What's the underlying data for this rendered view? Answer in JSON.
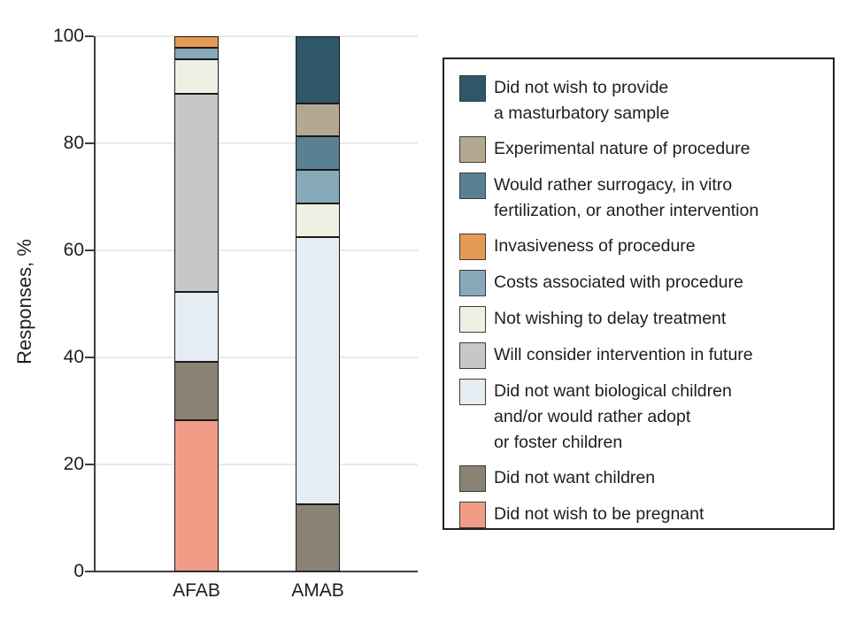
{
  "chart_data": {
    "type": "bar",
    "subtype": "stacked-percent",
    "ylabel": "Responses, %",
    "ylim": [
      0,
      100
    ],
    "yticks": [
      0,
      20,
      40,
      60,
      80,
      100
    ],
    "grid": true,
    "legend_position": "right",
    "categories": [
      "AFAB",
      "AMAB"
    ],
    "series": [
      {
        "name": "Did not wish to be pregnant",
        "color": "#F19C87",
        "values": [
          28.3,
          0
        ],
        "legend_lines": [
          "Did not wish to be pregnant"
        ]
      },
      {
        "name": "Did not want children",
        "color": "#8A8273",
        "values": [
          10.9,
          12.5
        ],
        "legend_lines": [
          "Did not want children"
        ]
      },
      {
        "name": "Did not want biological children and/or would rather adopt or foster children",
        "color": "#E5EDF2",
        "values": [
          13.0,
          50.0
        ],
        "legend_lines": [
          "Did not want biological children",
          "and/or would rather adopt",
          "or foster children"
        ]
      },
      {
        "name": "Will consider intervention in future",
        "color": "#C7C7C9",
        "values": [
          37.0,
          0
        ],
        "legend_lines": [
          "Will consider intervention in future"
        ]
      },
      {
        "name": "Not wishing to delay treatment",
        "color": "#EFEFE3",
        "values": [
          6.5,
          6.25
        ],
        "legend_lines": [
          "Not wishing to delay treatment"
        ]
      },
      {
        "name": "Costs associated with procedure",
        "color": "#87AABB",
        "values": [
          2.2,
          6.25
        ],
        "legend_lines": [
          "Costs associated with procedure"
        ]
      },
      {
        "name": "Invasiveness of procedure",
        "color": "#E49C54",
        "values": [
          2.1,
          0
        ],
        "legend_lines": [
          "Invasiveness of procedure"
        ]
      },
      {
        "name": "Would rather surrogacy, in vitro fertilization, or another intervention",
        "color": "#5A8093",
        "values": [
          0,
          6.25
        ],
        "legend_lines": [
          "Would rather surrogacy, in vitro",
          "fertilization, or another intervention"
        ]
      },
      {
        "name": "Experimental nature of procedure",
        "color": "#B3A993",
        "values": [
          0,
          6.25
        ],
        "legend_lines": [
          "Experimental nature of procedure"
        ]
      },
      {
        "name": "Did not wish to provide a masturbatory sample",
        "color": "#2E5767",
        "values": [
          0,
          12.5
        ],
        "legend_lines": [
          "Did not wish to provide",
          "a masturbatory sample"
        ]
      }
    ]
  },
  "colors": {
    "axis": "#3f3f3f",
    "grid": "#e9e9e9",
    "text": "#1e1e1e",
    "segment_border": "#1a1a1a",
    "background": "#ffffff"
  }
}
